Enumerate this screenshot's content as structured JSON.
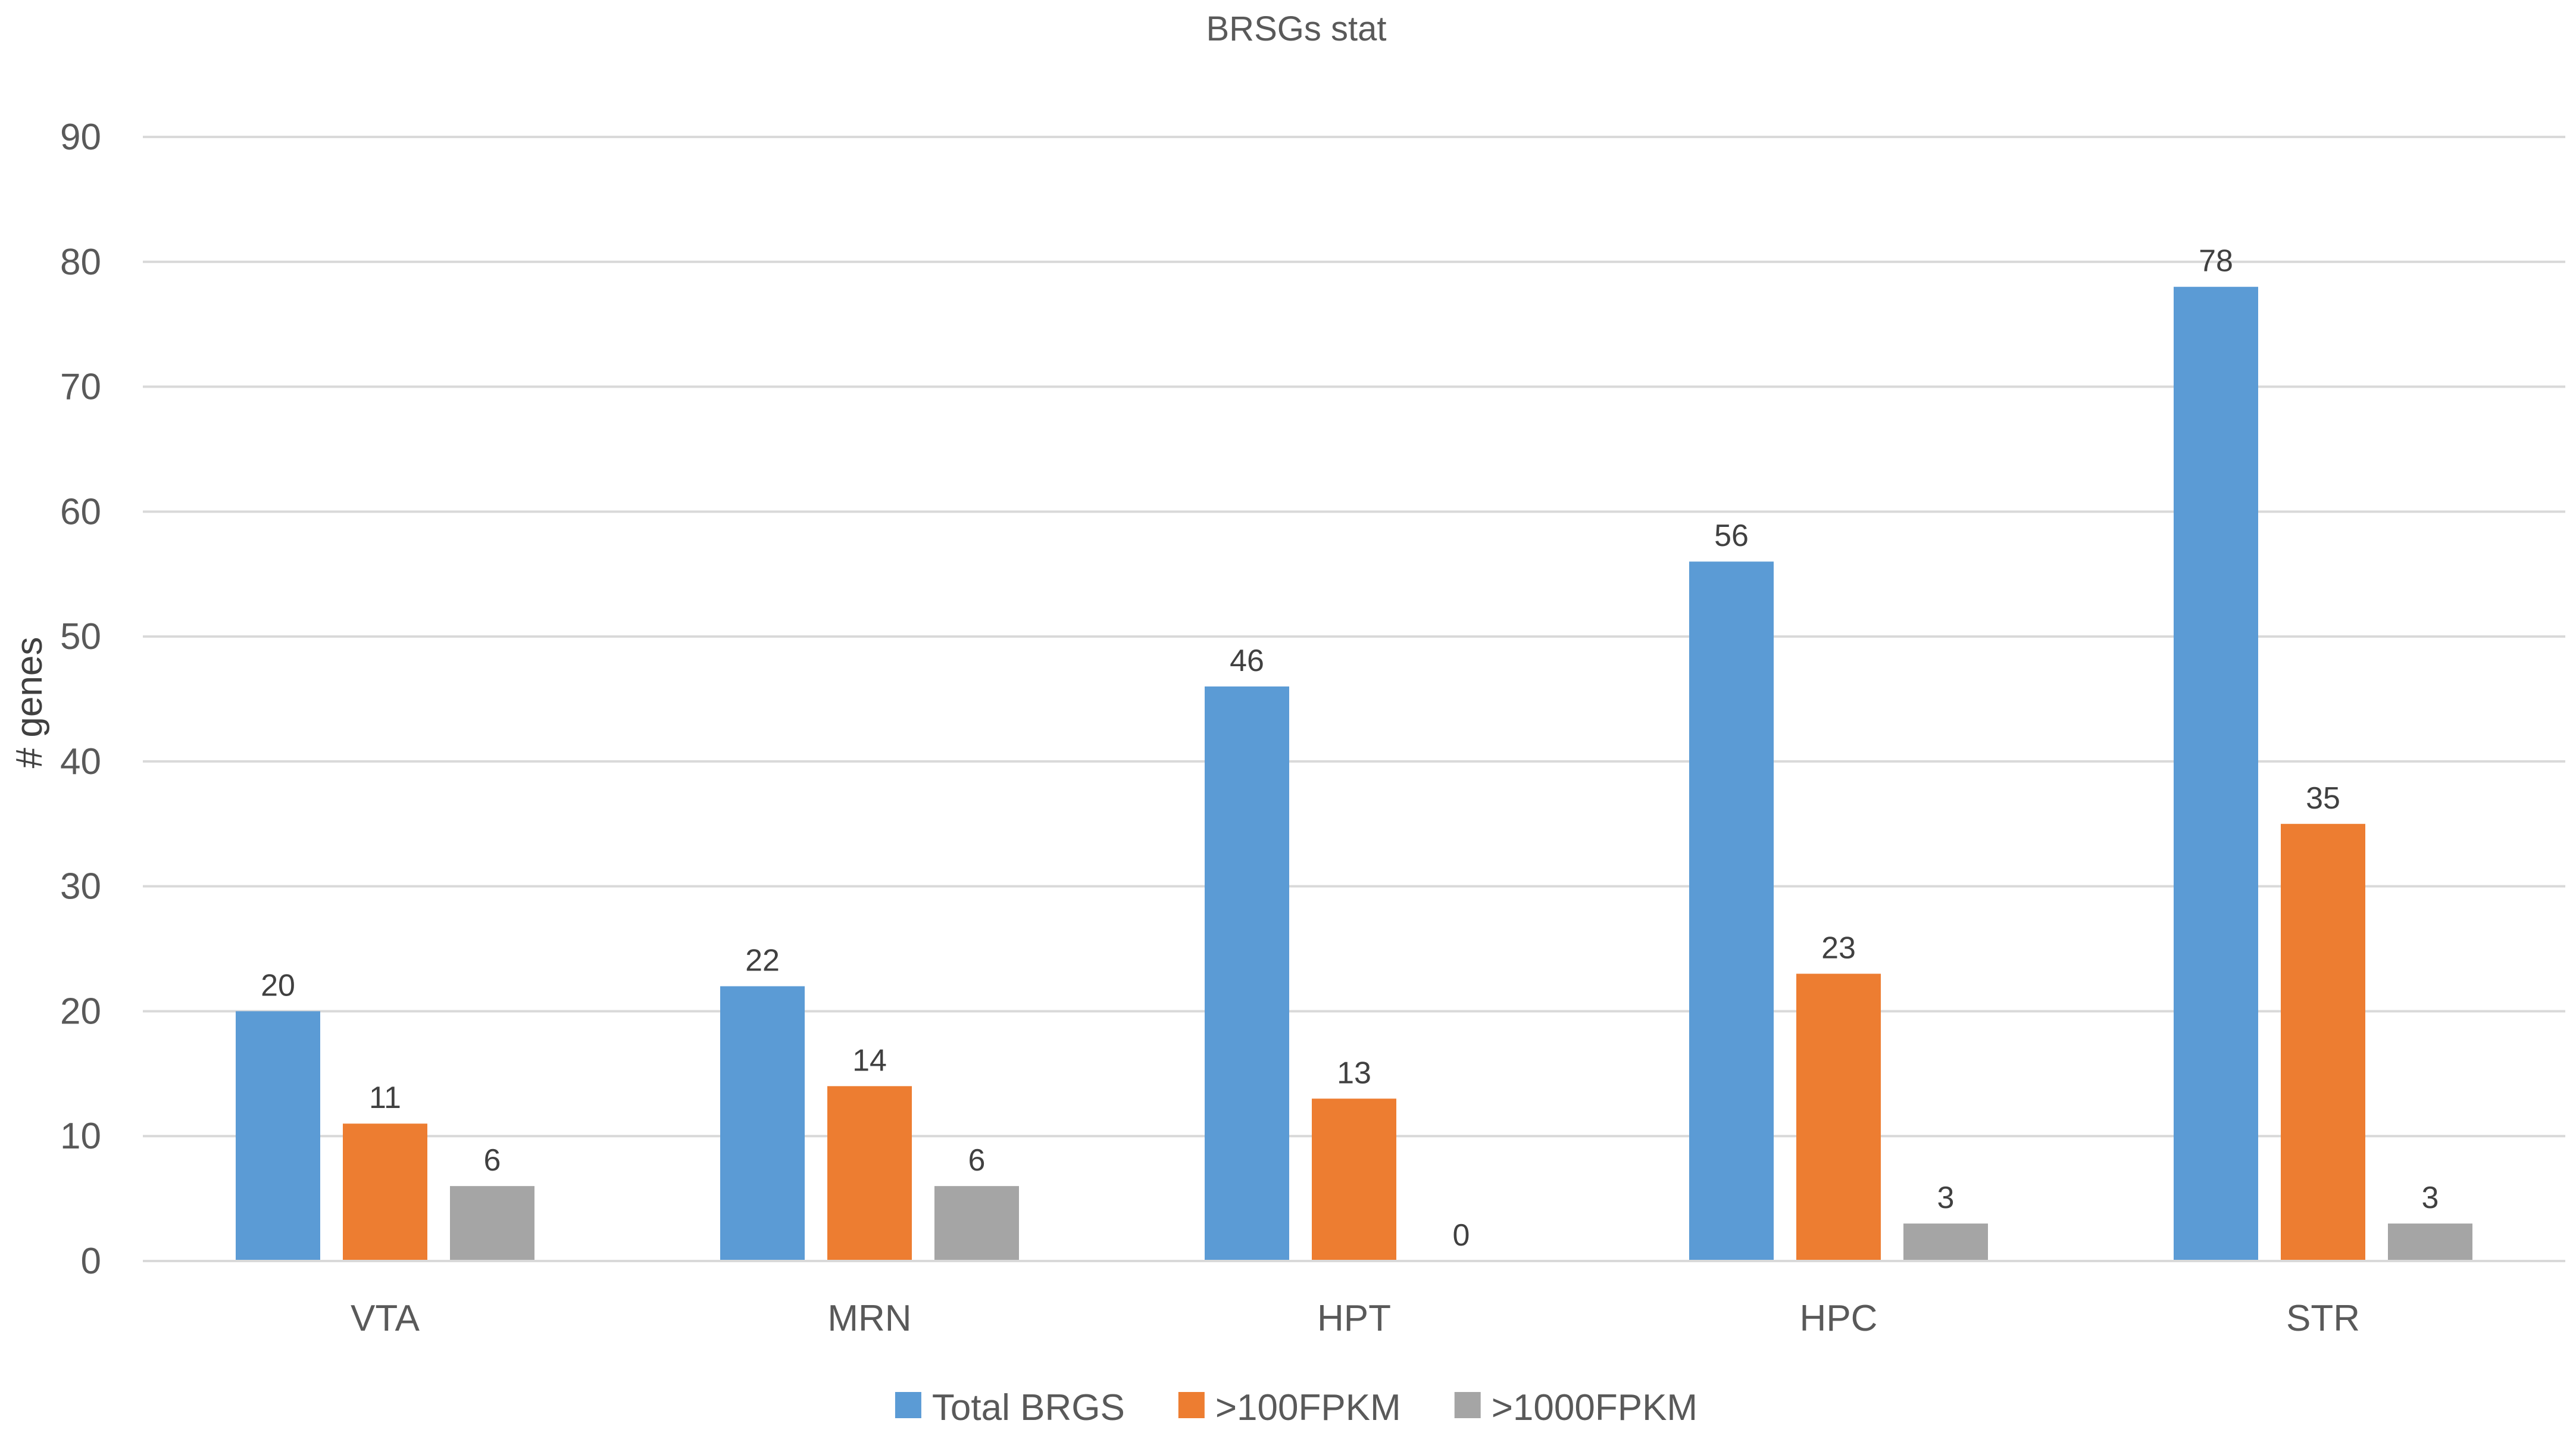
{
  "chart_data": {
    "type": "bar",
    "title": "BRSGs stat",
    "ylabel": "# genes",
    "xlabel": "",
    "categories": [
      "VTA",
      "MRN",
      "HPT",
      "HPC",
      "STR"
    ],
    "series": [
      {
        "name": "Total BRGS",
        "values": [
          20,
          22,
          46,
          56,
          78
        ],
        "color": "#5b9bd5"
      },
      {
        "name": ">100FPKM",
        "values": [
          11,
          14,
          13,
          23,
          35
        ],
        "color": "#ed7d31"
      },
      {
        "name": ">1000FPKM",
        "values": [
          6,
          6,
          0,
          3,
          3
        ],
        "color": "#a5a5a5"
      }
    ],
    "ylim": [
      0,
      90
    ],
    "yticks": [
      0,
      10,
      20,
      30,
      40,
      50,
      60,
      70,
      80,
      90
    ],
    "grid": true,
    "legend_position": "bottom",
    "data_labels": true
  }
}
